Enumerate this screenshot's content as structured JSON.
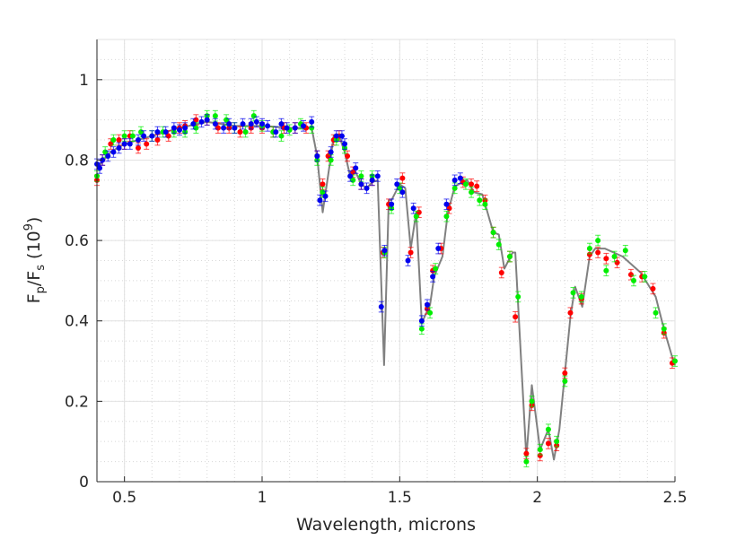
{
  "chart_data": {
    "type": "scatter",
    "title": "",
    "xlabel": "Wavelength, microns",
    "ylabel": {
      "base": "F",
      "sub1": "p",
      "mid": "/F",
      "sub2": "s",
      "unit_open": " (10",
      "sup": "9",
      "unit_close": ")"
    },
    "xlim": [
      0.4,
      2.5
    ],
    "ylim": [
      0,
      1.1
    ],
    "xticks": [
      0.5,
      1,
      1.5,
      2,
      2.5
    ],
    "xtick_labels": [
      "0.5",
      "1",
      "1.5",
      "2",
      "2.5"
    ],
    "yticks": [
      0,
      0.2,
      0.4,
      0.6,
      0.8,
      1
    ],
    "ytick_labels": [
      "0",
      "0.2",
      "0.4",
      "0.6",
      "0.8",
      "1"
    ],
    "grid": true,
    "minor_grid": true,
    "error": 0.013,
    "model": {
      "name": "model",
      "color": "#808080",
      "points": [
        [
          0.4,
          0.78
        ],
        [
          0.45,
          0.82
        ],
        [
          0.5,
          0.84
        ],
        [
          0.6,
          0.86
        ],
        [
          0.7,
          0.88
        ],
        [
          0.8,
          0.895
        ],
        [
          0.9,
          0.885
        ],
        [
          1.0,
          0.885
        ],
        [
          1.1,
          0.88
        ],
        [
          1.18,
          0.88
        ],
        [
          1.2,
          0.81
        ],
        [
          1.22,
          0.67
        ],
        [
          1.25,
          0.81
        ],
        [
          1.26,
          0.86
        ],
        [
          1.28,
          0.86
        ],
        [
          1.3,
          0.82
        ],
        [
          1.32,
          0.76
        ],
        [
          1.34,
          0.77
        ],
        [
          1.36,
          0.74
        ],
        [
          1.38,
          0.73
        ],
        [
          1.4,
          0.745
        ],
        [
          1.42,
          0.75
        ],
        [
          1.443,
          0.29
        ],
        [
          1.46,
          0.7
        ],
        [
          1.47,
          0.7
        ],
        [
          1.5,
          0.74
        ],
        [
          1.52,
          0.73
        ],
        [
          1.54,
          0.58
        ],
        [
          1.56,
          0.67
        ],
        [
          1.58,
          0.395
        ],
        [
          1.61,
          0.44
        ],
        [
          1.625,
          0.51
        ],
        [
          1.655,
          0.56
        ],
        [
          1.675,
          0.67
        ],
        [
          1.7,
          0.735
        ],
        [
          1.745,
          0.75
        ],
        [
          1.77,
          0.72
        ],
        [
          1.8,
          0.715
        ],
        [
          1.84,
          0.62
        ],
        [
          1.86,
          0.615
        ],
        [
          1.88,
          0.53
        ],
        [
          1.91,
          0.57
        ],
        [
          1.92,
          0.57
        ],
        [
          1.96,
          0.06
        ],
        [
          1.98,
          0.24
        ],
        [
          2.01,
          0.08
        ],
        [
          2.04,
          0.13
        ],
        [
          2.06,
          0.055
        ],
        [
          2.08,
          0.13
        ],
        [
          2.12,
          0.41
        ],
        [
          2.137,
          0.485
        ],
        [
          2.163,
          0.435
        ],
        [
          2.19,
          0.56
        ],
        [
          2.21,
          0.58
        ],
        [
          2.245,
          0.58
        ],
        [
          2.31,
          0.56
        ],
        [
          2.375,
          0.52
        ],
        [
          2.43,
          0.46
        ],
        [
          2.46,
          0.38
        ],
        [
          2.49,
          0.31
        ],
        [
          2.5,
          0.29
        ]
      ]
    },
    "series": [
      {
        "name": "red",
        "color": "#ff0000",
        "points": [
          [
            0.4,
            0.75
          ],
          [
            0.42,
            0.8
          ],
          [
            0.45,
            0.84
          ],
          [
            0.48,
            0.85
          ],
          [
            0.5,
            0.84
          ],
          [
            0.52,
            0.86
          ],
          [
            0.55,
            0.83
          ],
          [
            0.58,
            0.84
          ],
          [
            0.62,
            0.85
          ],
          [
            0.66,
            0.86
          ],
          [
            0.7,
            0.88
          ],
          [
            0.72,
            0.885
          ],
          [
            0.76,
            0.9
          ],
          [
            0.8,
            0.9
          ],
          [
            0.84,
            0.88
          ],
          [
            0.88,
            0.88
          ],
          [
            0.92,
            0.87
          ],
          [
            0.96,
            0.88
          ],
          [
            1.0,
            0.88
          ],
          [
            1.04,
            0.87
          ],
          [
            1.08,
            0.88
          ],
          [
            1.12,
            0.88
          ],
          [
            1.16,
            0.88
          ],
          [
            1.2,
            0.81
          ],
          [
            1.22,
            0.74
          ],
          [
            1.24,
            0.81
          ],
          [
            1.26,
            0.85
          ],
          [
            1.28,
            0.86
          ],
          [
            1.31,
            0.81
          ],
          [
            1.33,
            0.77
          ],
          [
            1.36,
            0.74
          ],
          [
            1.4,
            0.75
          ],
          [
            1.44,
            0.57
          ],
          [
            1.46,
            0.69
          ],
          [
            1.51,
            0.755
          ],
          [
            1.54,
            0.57
          ],
          [
            1.57,
            0.67
          ],
          [
            1.6,
            0.43
          ],
          [
            1.62,
            0.525
          ],
          [
            1.65,
            0.58
          ],
          [
            1.68,
            0.68
          ],
          [
            1.73,
            0.745
          ],
          [
            1.76,
            0.74
          ],
          [
            1.78,
            0.735
          ],
          [
            1.81,
            0.7
          ],
          [
            1.84,
            0.62
          ],
          [
            1.87,
            0.52
          ],
          [
            1.9,
            0.56
          ],
          [
            1.92,
            0.41
          ],
          [
            1.96,
            0.07
          ],
          [
            1.98,
            0.19
          ],
          [
            2.01,
            0.065
          ],
          [
            2.04,
            0.095
          ],
          [
            2.07,
            0.09
          ],
          [
            2.1,
            0.27
          ],
          [
            2.12,
            0.42
          ],
          [
            2.16,
            0.455
          ],
          [
            2.19,
            0.565
          ],
          [
            2.22,
            0.57
          ],
          [
            2.25,
            0.555
          ],
          [
            2.29,
            0.545
          ],
          [
            2.34,
            0.515
          ],
          [
            2.38,
            0.51
          ],
          [
            2.42,
            0.48
          ],
          [
            2.46,
            0.37
          ],
          [
            2.49,
            0.295
          ]
        ]
      },
      {
        "name": "green",
        "color": "#00ee00",
        "points": [
          [
            0.4,
            0.76
          ],
          [
            0.43,
            0.82
          ],
          [
            0.46,
            0.85
          ],
          [
            0.5,
            0.86
          ],
          [
            0.53,
            0.86
          ],
          [
            0.56,
            0.87
          ],
          [
            0.6,
            0.86
          ],
          [
            0.64,
            0.87
          ],
          [
            0.68,
            0.87
          ],
          [
            0.72,
            0.87
          ],
          [
            0.76,
            0.88
          ],
          [
            0.8,
            0.91
          ],
          [
            0.83,
            0.91
          ],
          [
            0.87,
            0.9
          ],
          [
            0.9,
            0.88
          ],
          [
            0.94,
            0.87
          ],
          [
            0.97,
            0.91
          ],
          [
            1.0,
            0.885
          ],
          [
            1.04,
            0.87
          ],
          [
            1.07,
            0.86
          ],
          [
            1.1,
            0.875
          ],
          [
            1.14,
            0.89
          ],
          [
            1.18,
            0.88
          ],
          [
            1.2,
            0.8
          ],
          [
            1.22,
            0.72
          ],
          [
            1.25,
            0.8
          ],
          [
            1.27,
            0.85
          ],
          [
            1.3,
            0.83
          ],
          [
            1.33,
            0.75
          ],
          [
            1.36,
            0.76
          ],
          [
            1.4,
            0.76
          ],
          [
            1.445,
            0.57
          ],
          [
            1.47,
            0.68
          ],
          [
            1.5,
            0.73
          ],
          [
            1.56,
            0.66
          ],
          [
            1.58,
            0.38
          ],
          [
            1.61,
            0.42
          ],
          [
            1.63,
            0.53
          ],
          [
            1.67,
            0.66
          ],
          [
            1.7,
            0.73
          ],
          [
            1.74,
            0.74
          ],
          [
            1.76,
            0.72
          ],
          [
            1.79,
            0.7
          ],
          [
            1.81,
            0.69
          ],
          [
            1.84,
            0.62
          ],
          [
            1.86,
            0.59
          ],
          [
            1.9,
            0.56
          ],
          [
            1.93,
            0.46
          ],
          [
            1.96,
            0.05
          ],
          [
            1.98,
            0.2
          ],
          [
            2.01,
            0.08
          ],
          [
            2.04,
            0.13
          ],
          [
            2.07,
            0.1
          ],
          [
            2.1,
            0.25
          ],
          [
            2.13,
            0.47
          ],
          [
            2.16,
            0.46
          ],
          [
            2.19,
            0.58
          ],
          [
            2.22,
            0.6
          ],
          [
            2.25,
            0.525
          ],
          [
            2.28,
            0.56
          ],
          [
            2.32,
            0.575
          ],
          [
            2.35,
            0.5
          ],
          [
            2.39,
            0.51
          ],
          [
            2.43,
            0.42
          ],
          [
            2.46,
            0.38
          ],
          [
            2.5,
            0.3
          ]
        ]
      },
      {
        "name": "blue",
        "color": "#0000ee",
        "points": [
          [
            0.4,
            0.79
          ],
          [
            0.41,
            0.78
          ],
          [
            0.42,
            0.8
          ],
          [
            0.44,
            0.81
          ],
          [
            0.46,
            0.82
          ],
          [
            0.48,
            0.83
          ],
          [
            0.5,
            0.84
          ],
          [
            0.52,
            0.84
          ],
          [
            0.55,
            0.85
          ],
          [
            0.57,
            0.86
          ],
          [
            0.6,
            0.86
          ],
          [
            0.62,
            0.87
          ],
          [
            0.65,
            0.87
          ],
          [
            0.68,
            0.88
          ],
          [
            0.7,
            0.875
          ],
          [
            0.72,
            0.88
          ],
          [
            0.75,
            0.89
          ],
          [
            0.78,
            0.895
          ],
          [
            0.8,
            0.9
          ],
          [
            0.83,
            0.89
          ],
          [
            0.86,
            0.88
          ],
          [
            0.88,
            0.89
          ],
          [
            0.9,
            0.88
          ],
          [
            0.93,
            0.89
          ],
          [
            0.96,
            0.89
          ],
          [
            0.98,
            0.895
          ],
          [
            1.0,
            0.89
          ],
          [
            1.02,
            0.885
          ],
          [
            1.05,
            0.87
          ],
          [
            1.07,
            0.89
          ],
          [
            1.09,
            0.88
          ],
          [
            1.12,
            0.88
          ],
          [
            1.15,
            0.885
          ],
          [
            1.18,
            0.895
          ],
          [
            1.2,
            0.81
          ],
          [
            1.21,
            0.7
          ],
          [
            1.23,
            0.71
          ],
          [
            1.25,
            0.82
          ],
          [
            1.27,
            0.86
          ],
          [
            1.29,
            0.86
          ],
          [
            1.3,
            0.84
          ],
          [
            1.32,
            0.76
          ],
          [
            1.34,
            0.78
          ],
          [
            1.36,
            0.74
          ],
          [
            1.38,
            0.73
          ],
          [
            1.4,
            0.75
          ],
          [
            1.42,
            0.76
          ],
          [
            1.433,
            0.435
          ],
          [
            1.445,
            0.575
          ],
          [
            1.47,
            0.69
          ],
          [
            1.49,
            0.74
          ],
          [
            1.51,
            0.72
          ],
          [
            1.53,
            0.55
          ],
          [
            1.55,
            0.68
          ],
          [
            1.58,
            0.4
          ],
          [
            1.6,
            0.44
          ],
          [
            1.62,
            0.51
          ],
          [
            1.64,
            0.58
          ],
          [
            1.67,
            0.69
          ],
          [
            1.7,
            0.75
          ],
          [
            1.72,
            0.755
          ]
        ]
      }
    ]
  }
}
